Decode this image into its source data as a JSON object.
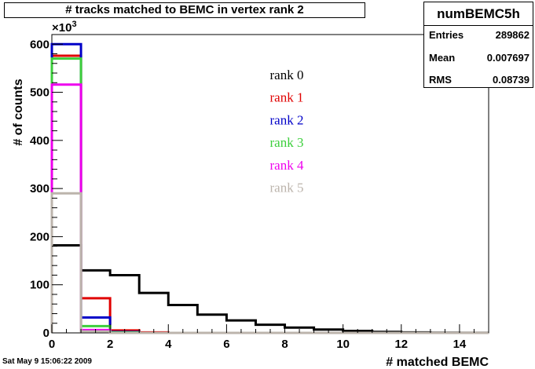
{
  "title": "# tracks matched to BEMC  in vertex rank 2",
  "stats": {
    "name": "numBEMC5h",
    "rows": [
      {
        "label": "Entries",
        "value": "289862"
      },
      {
        "label": "Mean",
        "value": "0.007697"
      },
      {
        "label": "RMS",
        "value": "0.08739"
      }
    ]
  },
  "footer": "Sat May  9 15:06:22 2009",
  "chart_data": {
    "type": "line",
    "style": "step histogram",
    "xlabel": "# matched BEMC",
    "ylabel": "# of counts",
    "y_multiplier_label": "×10",
    "y_multiplier_exp": "3",
    "xlim": [
      0,
      15
    ],
    "ylim": [
      0,
      620
    ],
    "x_ticks": [
      0,
      2,
      4,
      6,
      8,
      10,
      12,
      14
    ],
    "y_ticks": [
      0,
      100,
      200,
      300,
      400,
      500,
      600
    ],
    "bin_edges": [
      0,
      1,
      2,
      3,
      4,
      5,
      6,
      7,
      8,
      9,
      10,
      11,
      12,
      13,
      14,
      15
    ],
    "series": [
      {
        "name": "rank 0",
        "color": "#000000",
        "values": [
          182,
          130,
          120,
          83,
          58,
          38,
          26,
          17,
          11,
          7,
          4,
          2,
          1,
          0.5,
          0.3
        ]
      },
      {
        "name": "rank 1",
        "color": "#e00000",
        "values": [
          576,
          72,
          5,
          1,
          0,
          0,
          0,
          0,
          0,
          0,
          0,
          0,
          0,
          0,
          0
        ]
      },
      {
        "name": "rank 2",
        "color": "#0000c8",
        "values": [
          600,
          32,
          2,
          0,
          0,
          0,
          0,
          0,
          0,
          0,
          0,
          0,
          0,
          0,
          0
        ]
      },
      {
        "name": "rank 3",
        "color": "#3ccf3c",
        "values": [
          570,
          14,
          1,
          0,
          0,
          0,
          0,
          0,
          0,
          0,
          0,
          0,
          0,
          0,
          0
        ]
      },
      {
        "name": "rank 4",
        "color": "#ee00ee",
        "values": [
          516,
          6,
          0,
          0,
          0,
          0,
          0,
          0,
          0,
          0,
          0,
          0,
          0,
          0,
          0
        ]
      },
      {
        "name": "rank 5",
        "color": "#bcb4ac",
        "values": [
          290,
          3,
          0,
          0,
          0,
          0,
          0,
          0,
          0,
          0,
          0,
          0,
          0,
          0,
          0
        ]
      }
    ],
    "legend": [
      "rank 0",
      "rank 1",
      "rank 2",
      "rank 3",
      "rank 4",
      "rank 5"
    ],
    "grid": false
  }
}
